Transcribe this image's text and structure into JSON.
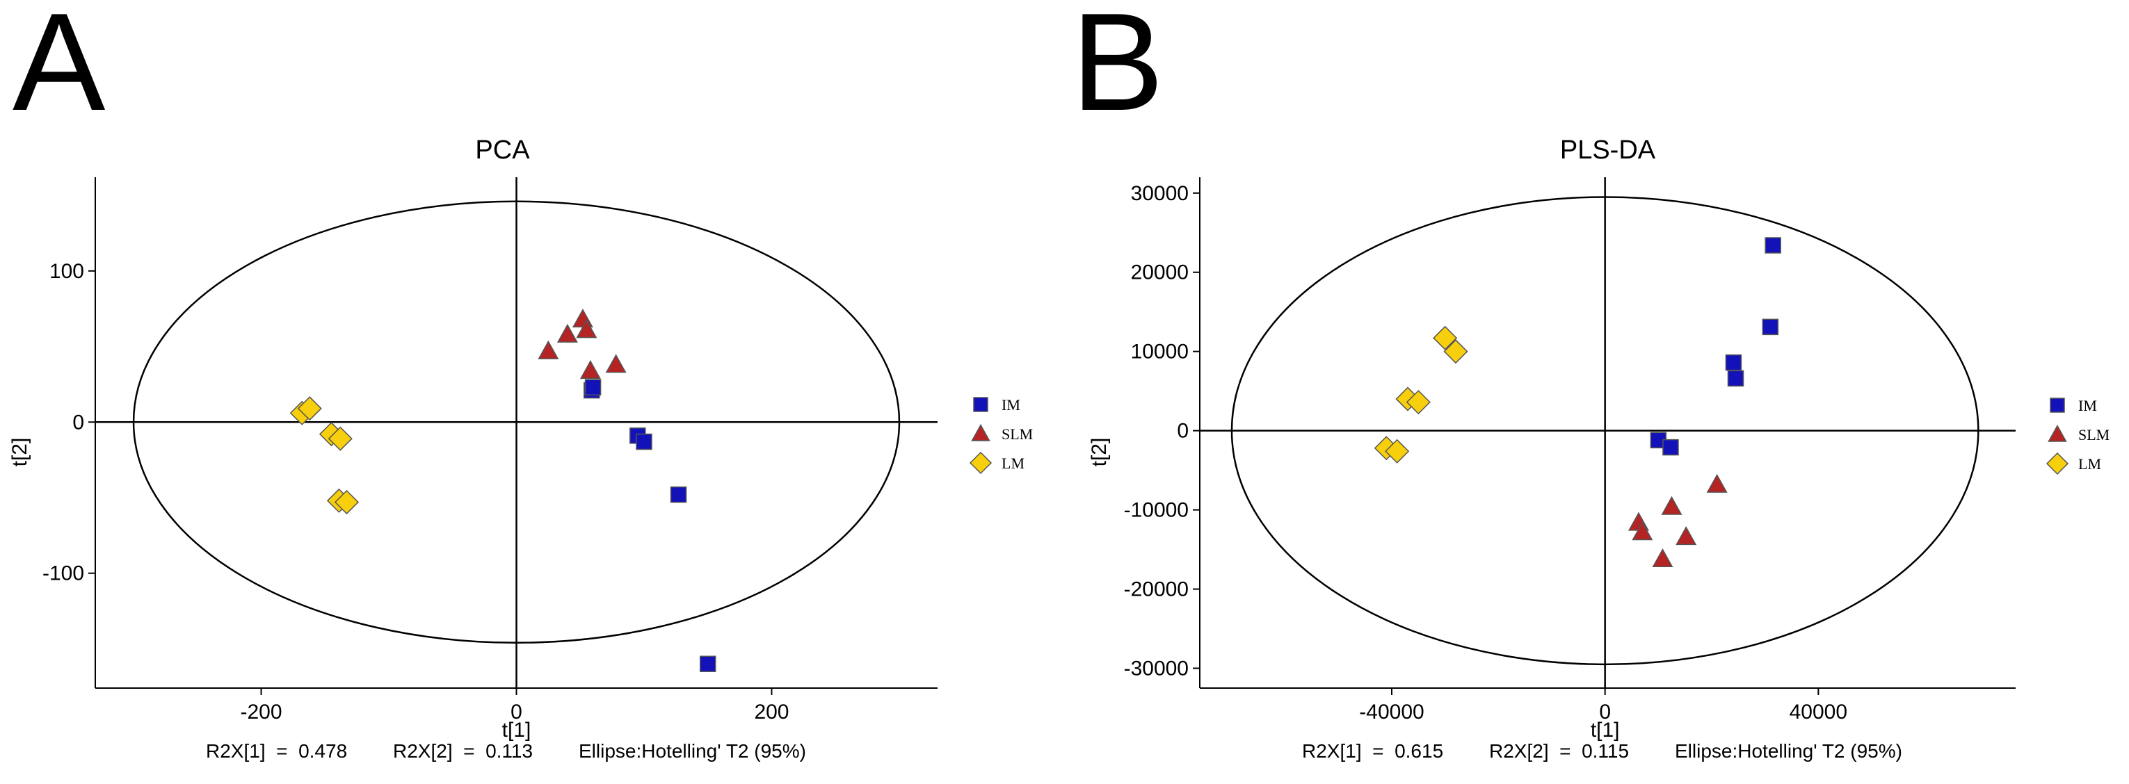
{
  "panels": {
    "a": {
      "letter": "A"
    },
    "b": {
      "letter": "B"
    }
  },
  "legend_shapes": {
    "IM": "square",
    "SLM": "triangle",
    "LM": "diamond"
  },
  "colors": {
    "IM": "#1212b8",
    "SLM": "#b52424",
    "LM": "#f8cf0c",
    "outline": "#555555",
    "axis": "#000000"
  },
  "chart_data": [
    {
      "type": "scatter",
      "title": "PCA",
      "xlabel": "t[1]",
      "ylabel": "t[2]",
      "xlim": [
        -330,
        330
      ],
      "ylim": [
        -176,
        162
      ],
      "xticks": [
        -200,
        0,
        200
      ],
      "yticks": [
        -100,
        0,
        100
      ],
      "xtick_labels": [
        "-200",
        "0",
        "200"
      ],
      "ytick_labels": [
        "-100",
        "0",
        "100"
      ],
      "grid": false,
      "ellipse": {
        "rx": 300,
        "ry": 146
      },
      "footer": [
        "R2X[1]  =  0.478",
        "R2X[2]  =  0.113",
        "Ellipse:Hotelling' T2 (95%)"
      ],
      "legend_position": "right",
      "series": [
        {
          "name": "IM",
          "points": [
            [
              59,
              21
            ],
            [
              60,
              23
            ],
            [
              95,
              -9
            ],
            [
              100,
              -13
            ],
            [
              127,
              -48
            ],
            [
              150,
              -160
            ]
          ]
        },
        {
          "name": "SLM",
          "points": [
            [
              25,
              47
            ],
            [
              40,
              58
            ],
            [
              52,
              68
            ],
            [
              55,
              61
            ],
            [
              58,
              34
            ],
            [
              78,
              38
            ]
          ]
        },
        {
          "name": "LM",
          "points": [
            [
              -168,
              6
            ],
            [
              -162,
              9
            ],
            [
              -145,
              -8
            ],
            [
              -138,
              -11
            ],
            [
              -139,
              -52
            ],
            [
              -133,
              -53
            ]
          ]
        }
      ]
    },
    {
      "type": "scatter",
      "title": "PLS-DA",
      "xlabel": "t[1]",
      "ylabel": "t[2]",
      "xlim": [
        -76000,
        77000
      ],
      "ylim": [
        -32500,
        32000
      ],
      "xticks": [
        -40000,
        0,
        40000
      ],
      "yticks": [
        -30000,
        -20000,
        -10000,
        0,
        10000,
        20000,
        30000
      ],
      "xtick_labels": [
        "-40000",
        "0",
        "40000"
      ],
      "ytick_labels": [
        "-30000",
        "-20000",
        "-10000",
        "0",
        "10000",
        "20000",
        "30000"
      ],
      "grid": false,
      "ellipse": {
        "rx": 70000,
        "ry": 29500
      },
      "footer": [
        "R2X[1]  =  0.615",
        "R2X[2]  =  0.115",
        "Ellipse:Hotelling' T2 (95%)"
      ],
      "legend_position": "right",
      "series": [
        {
          "name": "IM",
          "points": [
            [
              31500,
              23400
            ],
            [
              31000,
              13100
            ],
            [
              24100,
              8600
            ],
            [
              24500,
              6600
            ],
            [
              10000,
              -1200
            ],
            [
              12300,
              -2100
            ]
          ]
        },
        {
          "name": "SLM",
          "points": [
            [
              21000,
              -6800
            ],
            [
              6300,
              -11600
            ],
            [
              12500,
              -9600
            ],
            [
              7000,
              -12800
            ],
            [
              15200,
              -13400
            ],
            [
              10800,
              -16200
            ]
          ]
        },
        {
          "name": "LM",
          "points": [
            [
              -30000,
              11700
            ],
            [
              -28000,
              10000
            ],
            [
              -37000,
              4000
            ],
            [
              -35000,
              3600
            ],
            [
              -41000,
              -2200
            ],
            [
              -39000,
              -2600
            ]
          ]
        }
      ]
    }
  ]
}
